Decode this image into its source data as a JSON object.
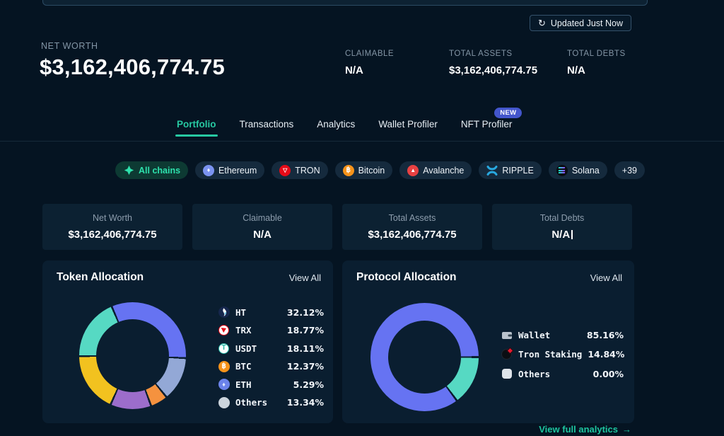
{
  "header": {
    "updated_button": "Updated Just Now",
    "refresh_icon": "refresh-icon",
    "net_worth_label": "NET WORTH",
    "net_worth_value": "$3,162,406,774.75",
    "stats": [
      {
        "label": "CLAIMABLE",
        "value": "N/A"
      },
      {
        "label": "TOTAL ASSETS",
        "value": "$3,162,406,774.75"
      },
      {
        "label": "TOTAL DEBTS",
        "value": "N/A"
      }
    ]
  },
  "tabs": {
    "items": [
      {
        "label": "Portfolio",
        "active": true
      },
      {
        "label": "Transactions",
        "active": false
      },
      {
        "label": "Analytics",
        "active": false
      },
      {
        "label": "Wallet Profiler",
        "active": false
      },
      {
        "label": "NFT Profiler",
        "active": false,
        "badge": "NEW"
      }
    ],
    "active_color": "#27c9a2",
    "badge_color": "#4356cc"
  },
  "chain_filters": [
    {
      "label": "All chains",
      "icon": "all-chains",
      "active": true
    },
    {
      "label": "Ethereum",
      "icon": "ethereum",
      "active": false
    },
    {
      "label": "TRON",
      "icon": "tron",
      "active": false
    },
    {
      "label": "Bitcoin",
      "icon": "bitcoin",
      "active": false
    },
    {
      "label": "Avalanche",
      "icon": "avalanche",
      "active": false
    },
    {
      "label": "RIPPLE",
      "icon": "ripple",
      "active": false
    },
    {
      "label": "Solana",
      "icon": "solana",
      "active": false
    },
    {
      "label": "+39",
      "icon": null,
      "active": false
    }
  ],
  "summary_cards": [
    {
      "label": "Net Worth",
      "value": "$3,162,406,774.75"
    },
    {
      "label": "Claimable",
      "value": "N/A"
    },
    {
      "label": "Total Assets",
      "value": "$3,162,406,774.75"
    },
    {
      "label": "Total Debts",
      "value": "N/A"
    }
  ],
  "chart_data": [
    {
      "type": "pie",
      "donut": true,
      "title": "Token Allocation",
      "view_all": "View All",
      "legend_position": "right",
      "start_deg": -23,
      "segments": [
        {
          "label": "HT",
          "value": 32.12,
          "display": "32.12%",
          "color": "#6673f2",
          "icon": "ht"
        },
        {
          "label": "TRX",
          "value": 18.77,
          "display": "18.77%",
          "color": "#56d9c3",
          "icon": "trx"
        },
        {
          "label": "USDT",
          "value": 18.11,
          "display": "18.11%",
          "color": "#f2c21f",
          "icon": "usdt"
        },
        {
          "label": "BTC",
          "value": 12.37,
          "display": "12.37%",
          "color": "#9c6dcb",
          "icon": "btc"
        },
        {
          "label": "ETH",
          "value": 5.29,
          "display": "5.29%",
          "color": "#f5923f",
          "icon": "eth"
        },
        {
          "label": "Others",
          "value": 13.34,
          "display": "13.34%",
          "color": "#93a8d6",
          "icon": "others-circle"
        }
      ],
      "slice_order": [
        "HT",
        "Others",
        "ETH",
        "BTC",
        "USDT",
        "TRX"
      ]
    },
    {
      "type": "pie",
      "donut": true,
      "title": "Protocol Allocation",
      "view_all": "View All",
      "legend_position": "right",
      "start_deg": 90,
      "segments": [
        {
          "label": "Wallet",
          "value": 85.16,
          "display": "85.16%",
          "color": "#6673f2",
          "icon": "wallet"
        },
        {
          "label": "Tron Staking",
          "value": 14.84,
          "display": "14.84%",
          "color": "#56d9c3",
          "icon": "tron-staking"
        },
        {
          "label": "Others",
          "value": 0.0,
          "display": "0.00%",
          "color": "#93a8d6",
          "icon": "others-square"
        }
      ],
      "slice_order": [
        "Tron Staking",
        "Wallet"
      ]
    }
  ],
  "footer": {
    "analytics_link": "View full analytics",
    "arrow": "→"
  }
}
